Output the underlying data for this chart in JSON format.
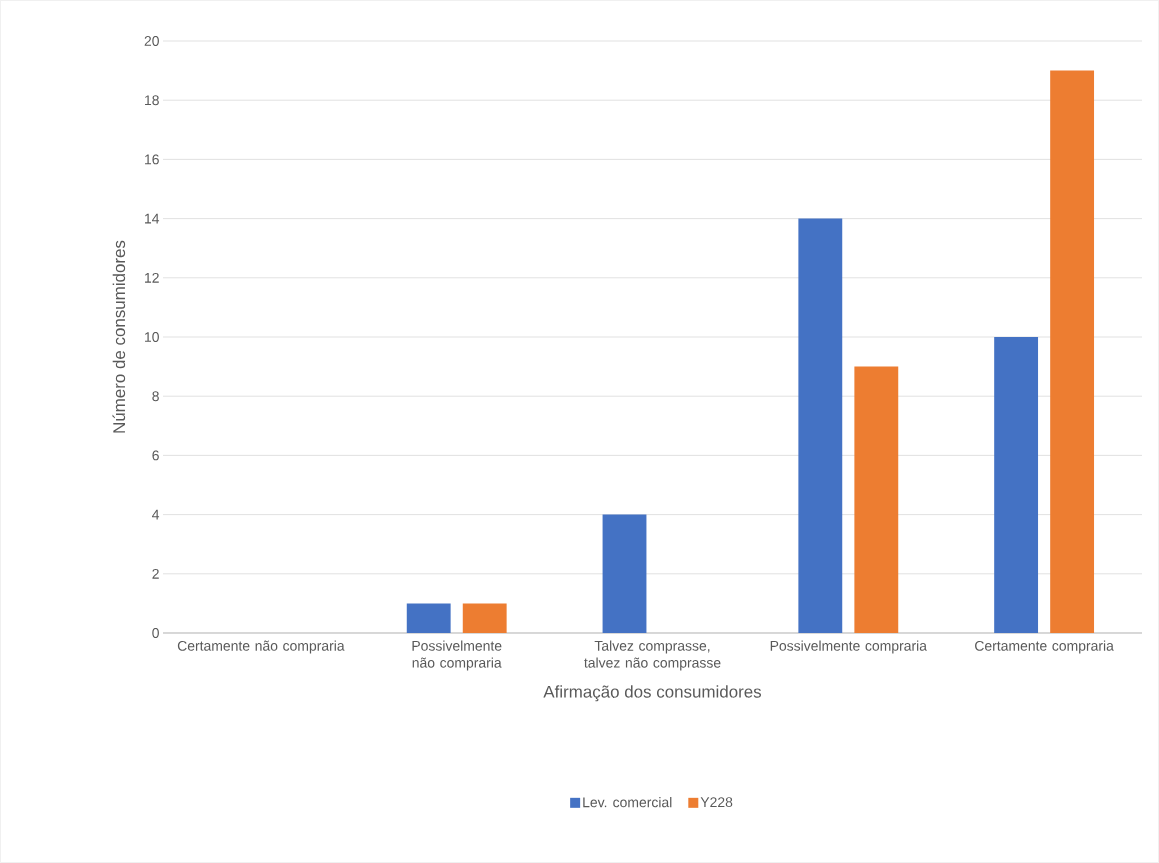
{
  "chart_data": {
    "type": "bar",
    "categories": [
      "Certamente não compraria",
      "Possivelmente não compraria",
      "Talvez comprasse, talvez não comprasse",
      "Possivelmente compraria",
      "Certamente compraria"
    ],
    "series": [
      {
        "name": "Lev. comercial",
        "color": "#4472c4",
        "values": [
          0,
          1,
          4,
          14,
          10
        ]
      },
      {
        "name": "Y228",
        "color": "#ed7d31",
        "values": [
          0,
          1,
          0,
          9,
          19
        ]
      }
    ],
    "xlabel": "Afirmação dos consumidores",
    "ylabel": "Número de consumidores",
    "ylim": [
      0,
      20
    ],
    "yticks": [
      0,
      2,
      4,
      6,
      8,
      10,
      12,
      14,
      16,
      18,
      20
    ],
    "grid": "y",
    "legend": "bottom"
  }
}
